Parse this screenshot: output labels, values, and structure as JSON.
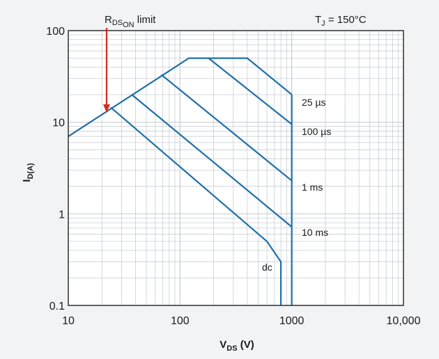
{
  "chart_data": {
    "type": "line",
    "x_scale": "log",
    "y_scale": "log",
    "xlim": [
      10,
      10000
    ],
    "ylim": [
      0.1,
      100
    ],
    "grid": true,
    "x_ticks": [
      "10",
      "100",
      "1000",
      "10,000"
    ],
    "y_ticks": [
      "100",
      "10",
      "1",
      "0.1"
    ],
    "xlabel": {
      "main": "V",
      "sub": "DS",
      "unit": " (V)"
    },
    "ylabel": {
      "main": "I",
      "sub": "D(A)"
    },
    "annotations": {
      "rds_limit": {
        "main": "R",
        "sub": "DS",
        "subsub": "ON",
        "tail": " limit"
      },
      "tj": {
        "main": "T",
        "sub": "J",
        "tail": " = 150°C"
      }
    },
    "series": [
      {
        "name": "25 µs",
        "x": [
          10,
          120,
          400,
          1000
        ],
        "y": [
          7,
          50,
          50,
          20
        ]
      },
      {
        "name": "100 µs",
        "x": [
          180,
          1000
        ],
        "y": [
          50,
          9.5
        ]
      },
      {
        "name": "1 ms",
        "x": [
          68,
          1000
        ],
        "y": [
          33,
          2.3
        ]
      },
      {
        "name": "10 ms",
        "x": [
          37,
          1000
        ],
        "y": [
          20,
          0.72
        ]
      },
      {
        "name": "dc",
        "x": [
          24,
          600,
          800,
          800
        ],
        "y": [
          14.5,
          0.5,
          0.3,
          0.1
        ]
      },
      {
        "name": "",
        "x": [
          1000,
          1000
        ],
        "y": [
          20,
          0.1
        ]
      }
    ],
    "colors": {
      "curve": "#1f6fa8",
      "arrow": "#d42a1f",
      "grid": "#c9ced3",
      "frame": "#222222",
      "plot_bg": "#ffffff",
      "outer_bg": "#f2f3f4"
    }
  }
}
